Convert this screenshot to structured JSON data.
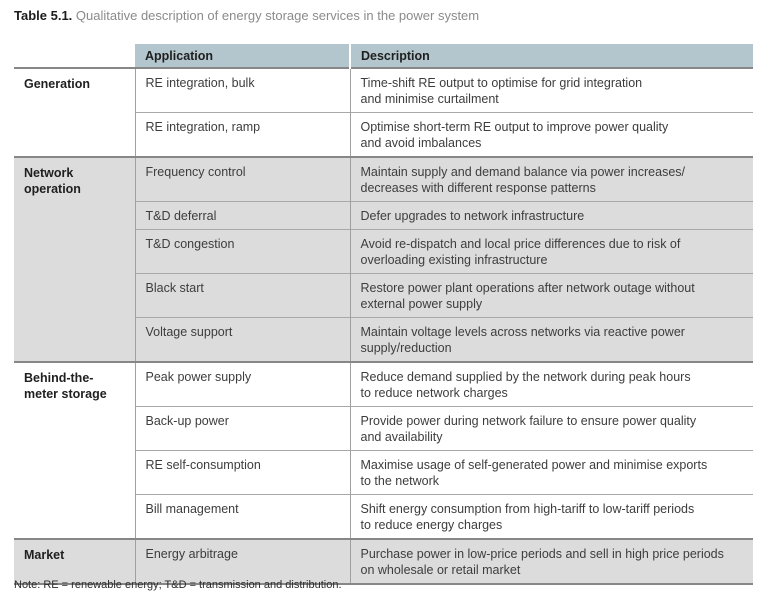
{
  "title": {
    "label": "Table 5.1.",
    "text": "Qualitative description of energy storage services in the power system"
  },
  "table": {
    "columns": [
      "",
      "Application",
      "Description"
    ],
    "groups": [
      {
        "name": "Generation",
        "rows": [
          {
            "application": "RE integration, bulk",
            "description": "Time-shift RE output to optimise for grid integration\nand minimise curtailment"
          },
          {
            "application": "RE integration, ramp",
            "description": "Optimise short-term RE output to improve power quality\nand avoid imbalances"
          }
        ]
      },
      {
        "name": "Network operation",
        "rows": [
          {
            "application": "Frequency control",
            "description": "Maintain supply and demand balance via power increases/\ndecreases with different response patterns"
          },
          {
            "application": "T&D deferral",
            "description": "Defer upgrades to network infrastructure"
          },
          {
            "application": "T&D congestion",
            "description": "Avoid re-dispatch and local price differences due to risk of\noverloading existing infrastructure"
          },
          {
            "application": "Black start",
            "description": "Restore power plant operations after network outage without\nexternal power supply"
          },
          {
            "application": "Voltage support",
            "description": "Maintain voltage levels across networks via reactive power\nsupply/reduction"
          }
        ]
      },
      {
        "name": "Behind-the-meter storage",
        "rows": [
          {
            "application": "Peak power supply",
            "description": "Reduce demand supplied by the network during peak hours\nto reduce network charges"
          },
          {
            "application": "Back-up power",
            "description": "Provide power during network failure to ensure power quality\nand availability"
          },
          {
            "application": "RE self-consumption",
            "description": "Maximise usage of self-generated power and minimise exports\nto the network"
          },
          {
            "application": "Bill management",
            "description": "Shift energy consumption from high-tariff to low-tariff periods\nto reduce energy charges"
          }
        ]
      },
      {
        "name": "Market",
        "rows": [
          {
            "application": "Energy arbitrage",
            "description": "Purchase power in low-price periods and sell in high price periods\non wholesale or retail market"
          }
        ]
      }
    ]
  },
  "note": "Note: RE = renewable energy; T&D = transmission and distribution.",
  "colors": {
    "header_bg": "#b4c6cd",
    "shaded_row_bg": "#dcdcdc",
    "heavy_rule": "#878787",
    "light_rule": "#a0a0a0",
    "body_text": "#3d3d3d",
    "title_muted": "#8b8b8b"
  }
}
